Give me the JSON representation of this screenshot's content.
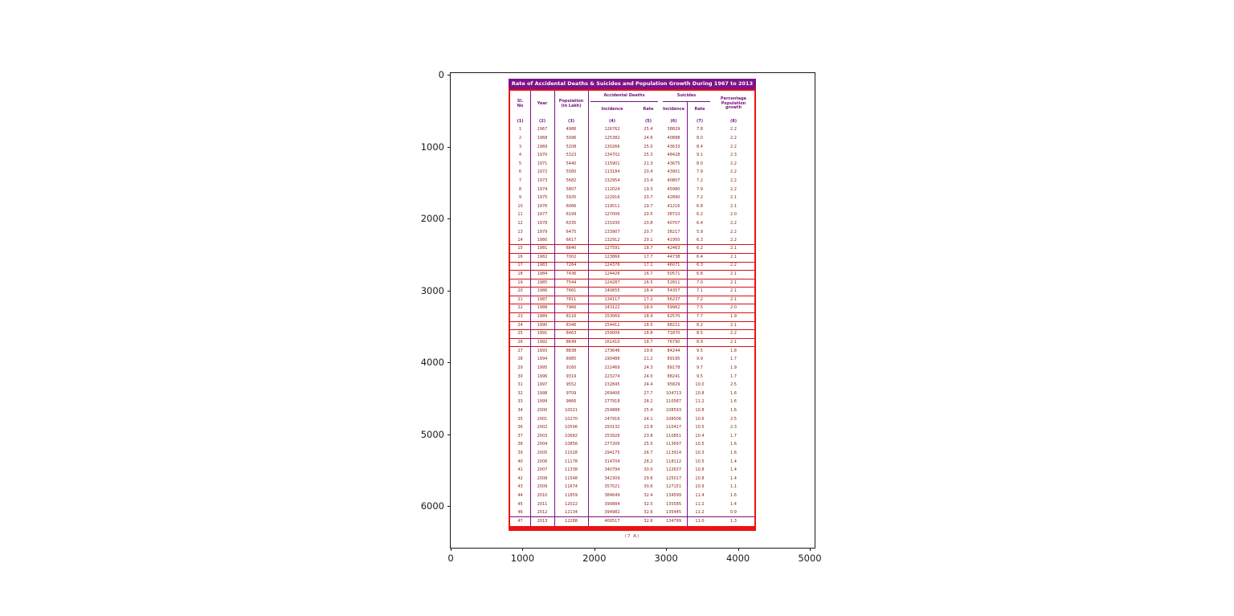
{
  "colors": {
    "title_bg": "#7e1289",
    "header_text": "#6e1478",
    "body_text": "#8e1a12",
    "border_red": "#ee1111",
    "sep_red": "#d41111",
    "line_purple": "#7c0f86",
    "axis_color": "#1a1a1a"
  },
  "axes": {
    "x_ticks": [
      "0",
      "1000",
      "2000",
      "3000",
      "4000",
      "5000"
    ],
    "y_ticks": [
      "0",
      "1000",
      "2000",
      "3000",
      "4000",
      "5000",
      "6000"
    ]
  },
  "table": {
    "caption": "(7 A)",
    "header": {
      "sl_no": "Sl.\nNo",
      "year": "Year",
      "population": "Population\n(in Lakh)",
      "accidental_deaths": "Accidental Deaths",
      "suicides": "Suicides",
      "incidence": "Incidence",
      "rate": "Rate",
      "percentage": "Percentage\nPopulation\ngrowth"
    },
    "col_numbers": [
      "(1)",
      "(2)",
      "(3)",
      "(4)",
      "(5)",
      "(6)",
      "(7)",
      "(8)"
    ]
  },
  "chart_data": {
    "type": "table",
    "title": "Rate of Accidental Deaths & Suicides and Population Growth During 1967 to 2013",
    "xlabel": "",
    "ylabel": "",
    "xlim": [
      0,
      5100
    ],
    "ylim": [
      0,
      6640
    ],
    "y_inverted": true,
    "grid": false,
    "columns": [
      "Sl. No",
      "Year",
      "Population (in Lakh)",
      "Accidental Deaths - Incidence",
      "Accidental Deaths - Rate",
      "Suicides - Incidence",
      "Suicides - Rate",
      "Percentage Population growth"
    ],
    "rows": [
      [
        "1",
        "1967",
        "4986",
        "126762",
        "25.4",
        "38829",
        "7.8",
        "2.2"
      ],
      [
        "2",
        "1968",
        "5096",
        "125382",
        "24.6",
        "40888",
        "8.0",
        "2.2"
      ],
      [
        "3",
        "1969",
        "5208",
        "130266",
        "25.0",
        "43633",
        "8.4",
        "2.2"
      ],
      [
        "4",
        "1970",
        "5323",
        "134702",
        "25.3",
        "48428",
        "9.1",
        "2.3"
      ],
      [
        "5",
        "1971",
        "5440",
        "115901",
        "21.3",
        "43675",
        "8.0",
        "2.2"
      ],
      [
        "6",
        "1972",
        "5560",
        "113184",
        "20.4",
        "43901",
        "7.9",
        "2.2"
      ],
      [
        "7",
        "1973",
        "5682",
        "132954",
        "23.4",
        "40807",
        "7.2",
        "2.2"
      ],
      [
        "8",
        "1974",
        "5807",
        "112024",
        "19.3",
        "45980",
        "7.9",
        "2.2"
      ],
      [
        "9",
        "1975",
        "5935",
        "122916",
        "20.7",
        "42890",
        "7.2",
        "2.1"
      ],
      [
        "10",
        "1976",
        "6066",
        "119511",
        "19.7",
        "41216",
        "6.8",
        "2.1"
      ],
      [
        "11",
        "1977",
        "6199",
        "127006",
        "20.5",
        "38710",
        "6.2",
        "2.0"
      ],
      [
        "12",
        "1978",
        "6335",
        "131930",
        "20.8",
        "40707",
        "6.4",
        "2.2"
      ],
      [
        "13",
        "1979",
        "6475",
        "133907",
        "20.7",
        "38217",
        "5.9",
        "2.2"
      ],
      [
        "14",
        "1980",
        "6617",
        "132912",
        "20.1",
        "41950",
        "6.3",
        "2.2"
      ],
      [
        "15",
        "1981",
        "6840",
        "127591",
        "18.7",
        "42463",
        "6.2",
        "2.1"
      ],
      [
        "16",
        "1982",
        "7002",
        "123866",
        "17.7",
        "44738",
        "6.4",
        "2.1"
      ],
      [
        "17",
        "1983",
        "7264",
        "124376",
        "17.1",
        "46071",
        "6.3",
        "2.2"
      ],
      [
        "18",
        "1984",
        "7436",
        "124426",
        "16.7",
        "50571",
        "6.8",
        "2.1"
      ],
      [
        "19",
        "1985",
        "7544",
        "124287",
        "16.5",
        "52811",
        "7.0",
        "2.1"
      ],
      [
        "20",
        "1986",
        "7661",
        "140655",
        "18.4",
        "54357",
        "7.1",
        "2.1"
      ],
      [
        "21",
        "1987",
        "7811",
        "134117",
        "17.2",
        "56237",
        "7.2",
        "2.1"
      ],
      [
        "22",
        "1988",
        "7966",
        "143122",
        "18.0",
        "59962",
        "7.5",
        "2.0"
      ],
      [
        "23",
        "1989",
        "8116",
        "153069",
        "18.9",
        "62570",
        "7.7",
        "1.9"
      ],
      [
        "24",
        "1990",
        "8346",
        "154411",
        "18.5",
        "68211",
        "8.2",
        "2.1"
      ],
      [
        "25",
        "1991",
        "8463",
        "159006",
        "18.8",
        "71870",
        "8.5",
        "2.2"
      ],
      [
        "26",
        "1992",
        "8649",
        "161410",
        "18.7",
        "76790",
        "8.9",
        "2.1"
      ],
      [
        "27",
        "1993",
        "8838",
        "173646",
        "19.6",
        "84244",
        "9.5",
        "1.8"
      ],
      [
        "28",
        "1994",
        "8985",
        "190488",
        "21.2",
        "89195",
        "9.9",
        "1.7"
      ],
      [
        "29",
        "1995",
        "9160",
        "222469",
        "24.3",
        "89178",
        "9.7",
        "1.9"
      ],
      [
        "30",
        "1996",
        "9319",
        "223274",
        "24.0",
        "88241",
        "9.5",
        "1.7"
      ],
      [
        "31",
        "1997",
        "9552",
        "232845",
        "24.4",
        "95829",
        "10.0",
        "2.5"
      ],
      [
        "32",
        "1998",
        "9709",
        "269406",
        "27.7",
        "104713",
        "10.8",
        "1.6"
      ],
      [
        "33",
        "1999",
        "9866",
        "277918",
        "28.2",
        "110587",
        "11.2",
        "1.6"
      ],
      [
        "34",
        "2000",
        "10021",
        "254888",
        "25.4",
        "108593",
        "10.8",
        "1.6"
      ],
      [
        "35",
        "2001",
        "10270",
        "247916",
        "24.1",
        "108506",
        "10.6",
        "2.5"
      ],
      [
        "36",
        "2002",
        "10506",
        "250132",
        "23.8",
        "110417",
        "10.5",
        "2.3"
      ],
      [
        "37",
        "2003",
        "10682",
        "253926",
        "23.8",
        "110851",
        "10.4",
        "1.7"
      ],
      [
        "38",
        "2004",
        "10856",
        "277206",
        "25.5",
        "113697",
        "10.5",
        "1.6"
      ],
      [
        "39",
        "2005",
        "11028",
        "294175",
        "26.7",
        "113914",
        "10.3",
        "1.6"
      ],
      [
        "40",
        "2006",
        "11178",
        "314704",
        "28.2",
        "118112",
        "10.5",
        "1.4"
      ],
      [
        "41",
        "2007",
        "11338",
        "340794",
        "30.0",
        "122637",
        "10.8",
        "1.4"
      ],
      [
        "42",
        "2008",
        "11548",
        "342309",
        "29.6",
        "125017",
        "10.8",
        "1.4"
      ],
      [
        "43",
        "2009",
        "11674",
        "357021",
        "30.6",
        "127151",
        "10.9",
        "1.1"
      ],
      [
        "44",
        "2010",
        "11859",
        "384649",
        "32.4",
        "134599",
        "11.4",
        "1.6"
      ],
      [
        "45",
        "2011",
        "12022",
        "390884",
        "32.5",
        "135585",
        "11.2",
        "1.4"
      ],
      [
        "46",
        "2012",
        "12134",
        "394982",
        "32.6",
        "135445",
        "11.2",
        "0.9"
      ],
      [
        "47",
        "2013",
        "12288",
        "400517",
        "32.6",
        "134799",
        "11.0",
        "1.3"
      ]
    ],
    "row_group_with_red_separators": [
      14,
      26
    ],
    "axis_x_ticks": [
      0,
      1000,
      2000,
      3000,
      4000,
      5000
    ],
    "axis_y_ticks": [
      0,
      1000,
      2000,
      3000,
      4000,
      5000,
      6000
    ]
  }
}
